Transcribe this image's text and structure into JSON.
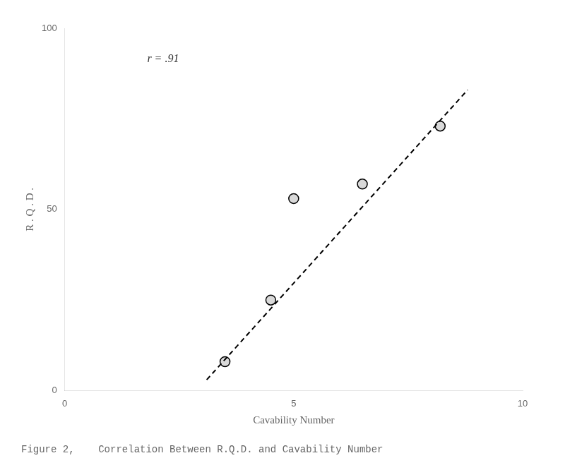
{
  "chart_data": {
    "type": "scatter",
    "annotation": "r = .91",
    "caption": "Figure 2,    Correlation Between R.Q.D. and Cavability Number",
    "x_label": "Cavability Number",
    "y_label": "R . Q . D .",
    "series": [
      {
        "type": "scatter",
        "marker": "circle",
        "color": "black",
        "x": [
          3.5,
          4.5,
          5.0,
          6.5,
          8.2
        ],
        "values": [
          8,
          25,
          53,
          57,
          73
        ]
      },
      {
        "type": "line",
        "line_style": "dashed",
        "color": "black",
        "x": [
          3.1,
          8.8
        ],
        "values": [
          3,
          83
        ]
      }
    ],
    "xlim": [
      0,
      10
    ],
    "ylim": [
      0,
      100
    ],
    "xticks": [
      0,
      5,
      10
    ],
    "yticks": [
      0,
      50,
      100
    ],
    "grid": false
  }
}
